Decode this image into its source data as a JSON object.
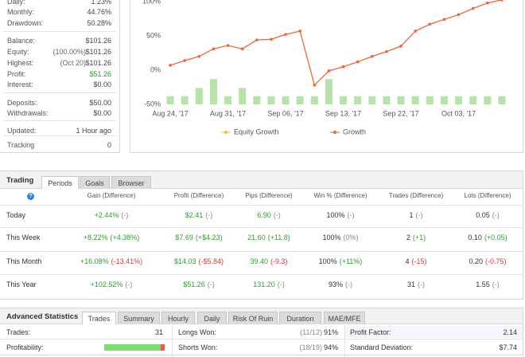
{
  "account_stats": {
    "groups": [
      [
        {
          "label": "Daily:",
          "value": "1.23%"
        },
        {
          "label": "Monthly:",
          "value": "44.76%"
        },
        {
          "label": "Drawdown:",
          "value": "50.28%"
        }
      ],
      [
        {
          "label": "Balance:",
          "value": "$101.26"
        },
        {
          "label": "Equity:",
          "note": "(100.00%)",
          "value": "$101.26"
        },
        {
          "label": "Highest:",
          "note": "(Oct 20)",
          "value": "$101.26"
        },
        {
          "label": "Profit:",
          "value": "$51.26"
        },
        {
          "label": "Interest:",
          "value": "$0.00"
        }
      ],
      [
        {
          "label": "Deposits:",
          "value": "$50.00"
        },
        {
          "label": "Withdrawals:",
          "value": "$0.00"
        }
      ],
      [
        {
          "label": "Updated:",
          "value": "1 Hour ago"
        },
        {
          "label": "Tracking",
          "value": "0"
        }
      ]
    ]
  },
  "growth_chart": {
    "ylim": [
      -50,
      105
    ],
    "xlim": [
      -0.5,
      23.5
    ],
    "yticks": [
      {
        "value": 100,
        "label": "100%"
      },
      {
        "value": 50,
        "label": "50%"
      },
      {
        "value": 0,
        "label": "0%"
      },
      {
        "value": -50,
        "label": "-50%"
      }
    ],
    "xticks": [
      {
        "value": 0,
        "label": "Aug 24, '17"
      },
      {
        "value": 4,
        "label": "Aug 31, '17"
      },
      {
        "value": 8,
        "label": "Sep 06, '17"
      },
      {
        "value": 12,
        "label": "Sep 13, '17"
      },
      {
        "value": 16,
        "label": "Sep 22, '17"
      },
      {
        "value": 20,
        "label": "Oct 03, '17"
      }
    ],
    "growth": {
      "color": "#f0663a",
      "values": [
        7,
        14,
        20,
        31,
        36,
        31,
        44,
        45,
        52,
        57,
        -22,
        -1,
        5,
        12,
        20,
        27,
        35,
        57,
        67,
        74,
        81,
        90,
        98,
        102.52
      ]
    },
    "bars": {
      "color": "#b7e2a8",
      "values": [
        -38,
        -38,
        -26,
        -13,
        -38,
        -26,
        -38,
        -38,
        -38,
        -38,
        -38,
        -13,
        -38,
        -38,
        -38,
        -38,
        -38,
        -38,
        -38,
        -38,
        -38,
        -38,
        -38,
        -38
      ]
    },
    "legend": [
      {
        "name": "Equity Growth",
        "color": "#f2c230"
      },
      {
        "name": "Growth",
        "color": "#f0663a"
      }
    ]
  },
  "trading": {
    "title": "Trading",
    "tabs": [
      "Periods",
      "Goals",
      "Browser"
    ],
    "active_tab": 0,
    "help_icon": "?",
    "columns": [
      "Gain (Difference)",
      "Profit (Difference)",
      "Pips (Difference)",
      "Win % (Difference)",
      "Trades (Difference)",
      "Lots (Difference)"
    ],
    "rows": [
      {
        "label": "Today",
        "cells": [
          {
            "value": "+2.44%",
            "diff": "(-)"
          },
          {
            "value": "$2.41",
            "diff": "(-)"
          },
          {
            "value": "6.90",
            "diff": "(-)"
          },
          {
            "value": "100%",
            "diff": "(-)"
          },
          {
            "value": "1",
            "diff": "(-)"
          },
          {
            "value": "0.05",
            "diff": "(-)"
          }
        ]
      },
      {
        "label": "This Week",
        "cells": [
          {
            "value": "+8.22%",
            "diff": "(+4.38%)"
          },
          {
            "value": "$7.69",
            "diff": "(+$4.23)"
          },
          {
            "value": "21.60",
            "diff": "(+11.8)"
          },
          {
            "value": "100%",
            "diff": "(0%)"
          },
          {
            "value": "2",
            "diff": "(+1)"
          },
          {
            "value": "0.10",
            "diff": "(+0.05)"
          }
        ]
      },
      {
        "label": "This Month",
        "cells": [
          {
            "value": "+16.08%",
            "diff": "(-13.41%)"
          },
          {
            "value": "$14.03",
            "diff": "(-$5.84)"
          },
          {
            "value": "39.40",
            "diff": "(-9.3)"
          },
          {
            "value": "100%",
            "diff": "(+11%)"
          },
          {
            "value": "4",
            "diff": "(-15)"
          },
          {
            "value": "0.20",
            "diff": "(-0.75)"
          }
        ]
      },
      {
        "label": "This Year",
        "cells": [
          {
            "value": "+102.52%",
            "diff": "(-)"
          },
          {
            "value": "$51.26",
            "diff": "(-)"
          },
          {
            "value": "131.20",
            "diff": "(-)"
          },
          {
            "value": "93%",
            "diff": "(-)"
          },
          {
            "value": "31",
            "diff": "(-)"
          },
          {
            "value": "1.55",
            "diff": "(-)"
          }
        ]
      }
    ]
  },
  "advanced": {
    "title": "Advanced Statistics",
    "tabs": [
      "Trades",
      "Summary",
      "Hourly",
      "Daily",
      "Risk Of Ruin",
      "Duration",
      "MAE/MFE"
    ],
    "active_tab": 0,
    "rows": [
      [
        {
          "label": "Trades:",
          "value": "31"
        },
        {
          "label": "Longs Won:",
          "note": "(11/12)",
          "value": "91%"
        },
        {
          "label": "Profit Factor:",
          "value": "2.14"
        }
      ],
      [
        {
          "label": "Profitability:"
        },
        {
          "label": "Shorts Won:",
          "note": "(18/19)",
          "value": "94%"
        },
        {
          "label": "Standard Deviation:",
          "value": "$7.74"
        }
      ]
    ]
  }
}
